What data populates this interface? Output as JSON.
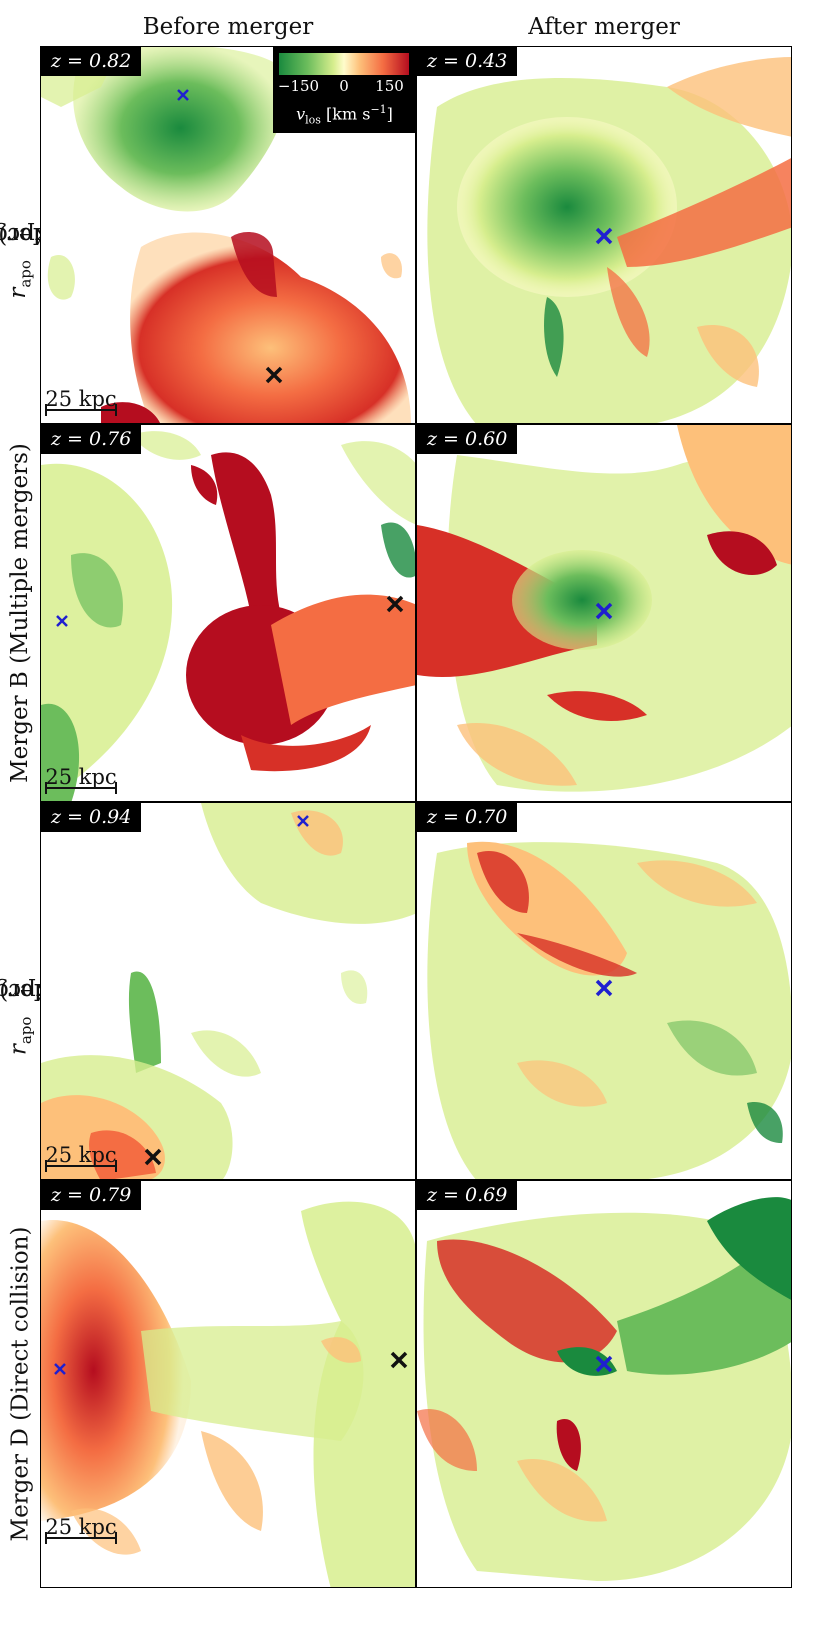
{
  "columns": {
    "before": "Before merger",
    "after": "After merger"
  },
  "rows": [
    {
      "label": "Merger A (r_apo = 91 kpc)",
      "label_main": "Merger A (",
      "label_sym": "r",
      "label_sub": "apo",
      "label_rest": " = 91 kpc)",
      "z_before": "z = 0.82",
      "z_after": "z = 0.43",
      "scale": "25 kpc"
    },
    {
      "label": "Merger B (Multiple mergers)",
      "label_main": "Merger B (Multiple mergers)",
      "label_sym": "",
      "label_sub": "",
      "label_rest": "",
      "z_before": "z = 0.76",
      "z_after": "z = 0.60",
      "scale": "25 kpc"
    },
    {
      "label": "Merger C (r_apo = 28 kpc)",
      "label_main": "Merger C (",
      "label_sym": "r",
      "label_sub": "apo",
      "label_rest": " = 28 kpc)",
      "z_before": "z = 0.94",
      "z_after": "z = 0.70",
      "scale": "25 kpc"
    },
    {
      "label": "Merger D (Direct collision)",
      "label_main": "Merger D (Direct collision)",
      "label_sym": "",
      "label_sub": "",
      "label_rest": "",
      "z_before": "z = 0.79",
      "z_after": "z = 0.69",
      "scale": "25 kpc"
    }
  ],
  "colorbar": {
    "ticks": [
      "−150",
      "0",
      "150"
    ],
    "label": "v_los [km s^-1]",
    "label_sym": "v",
    "label_sub": "los",
    "label_unit": "[km s",
    "label_sup": "−1",
    "label_end": "]"
  },
  "colors": {
    "green_dark": "#1a8a3e",
    "green": "#6cbd5c",
    "light_green": "#d7ee8e",
    "neutral": "#fffccc",
    "orange": "#fdc07a",
    "red_orange": "#f46d43",
    "red": "#b50d1f",
    "marker_blue": "#1f1fd0",
    "marker_black": "#111111"
  }
}
